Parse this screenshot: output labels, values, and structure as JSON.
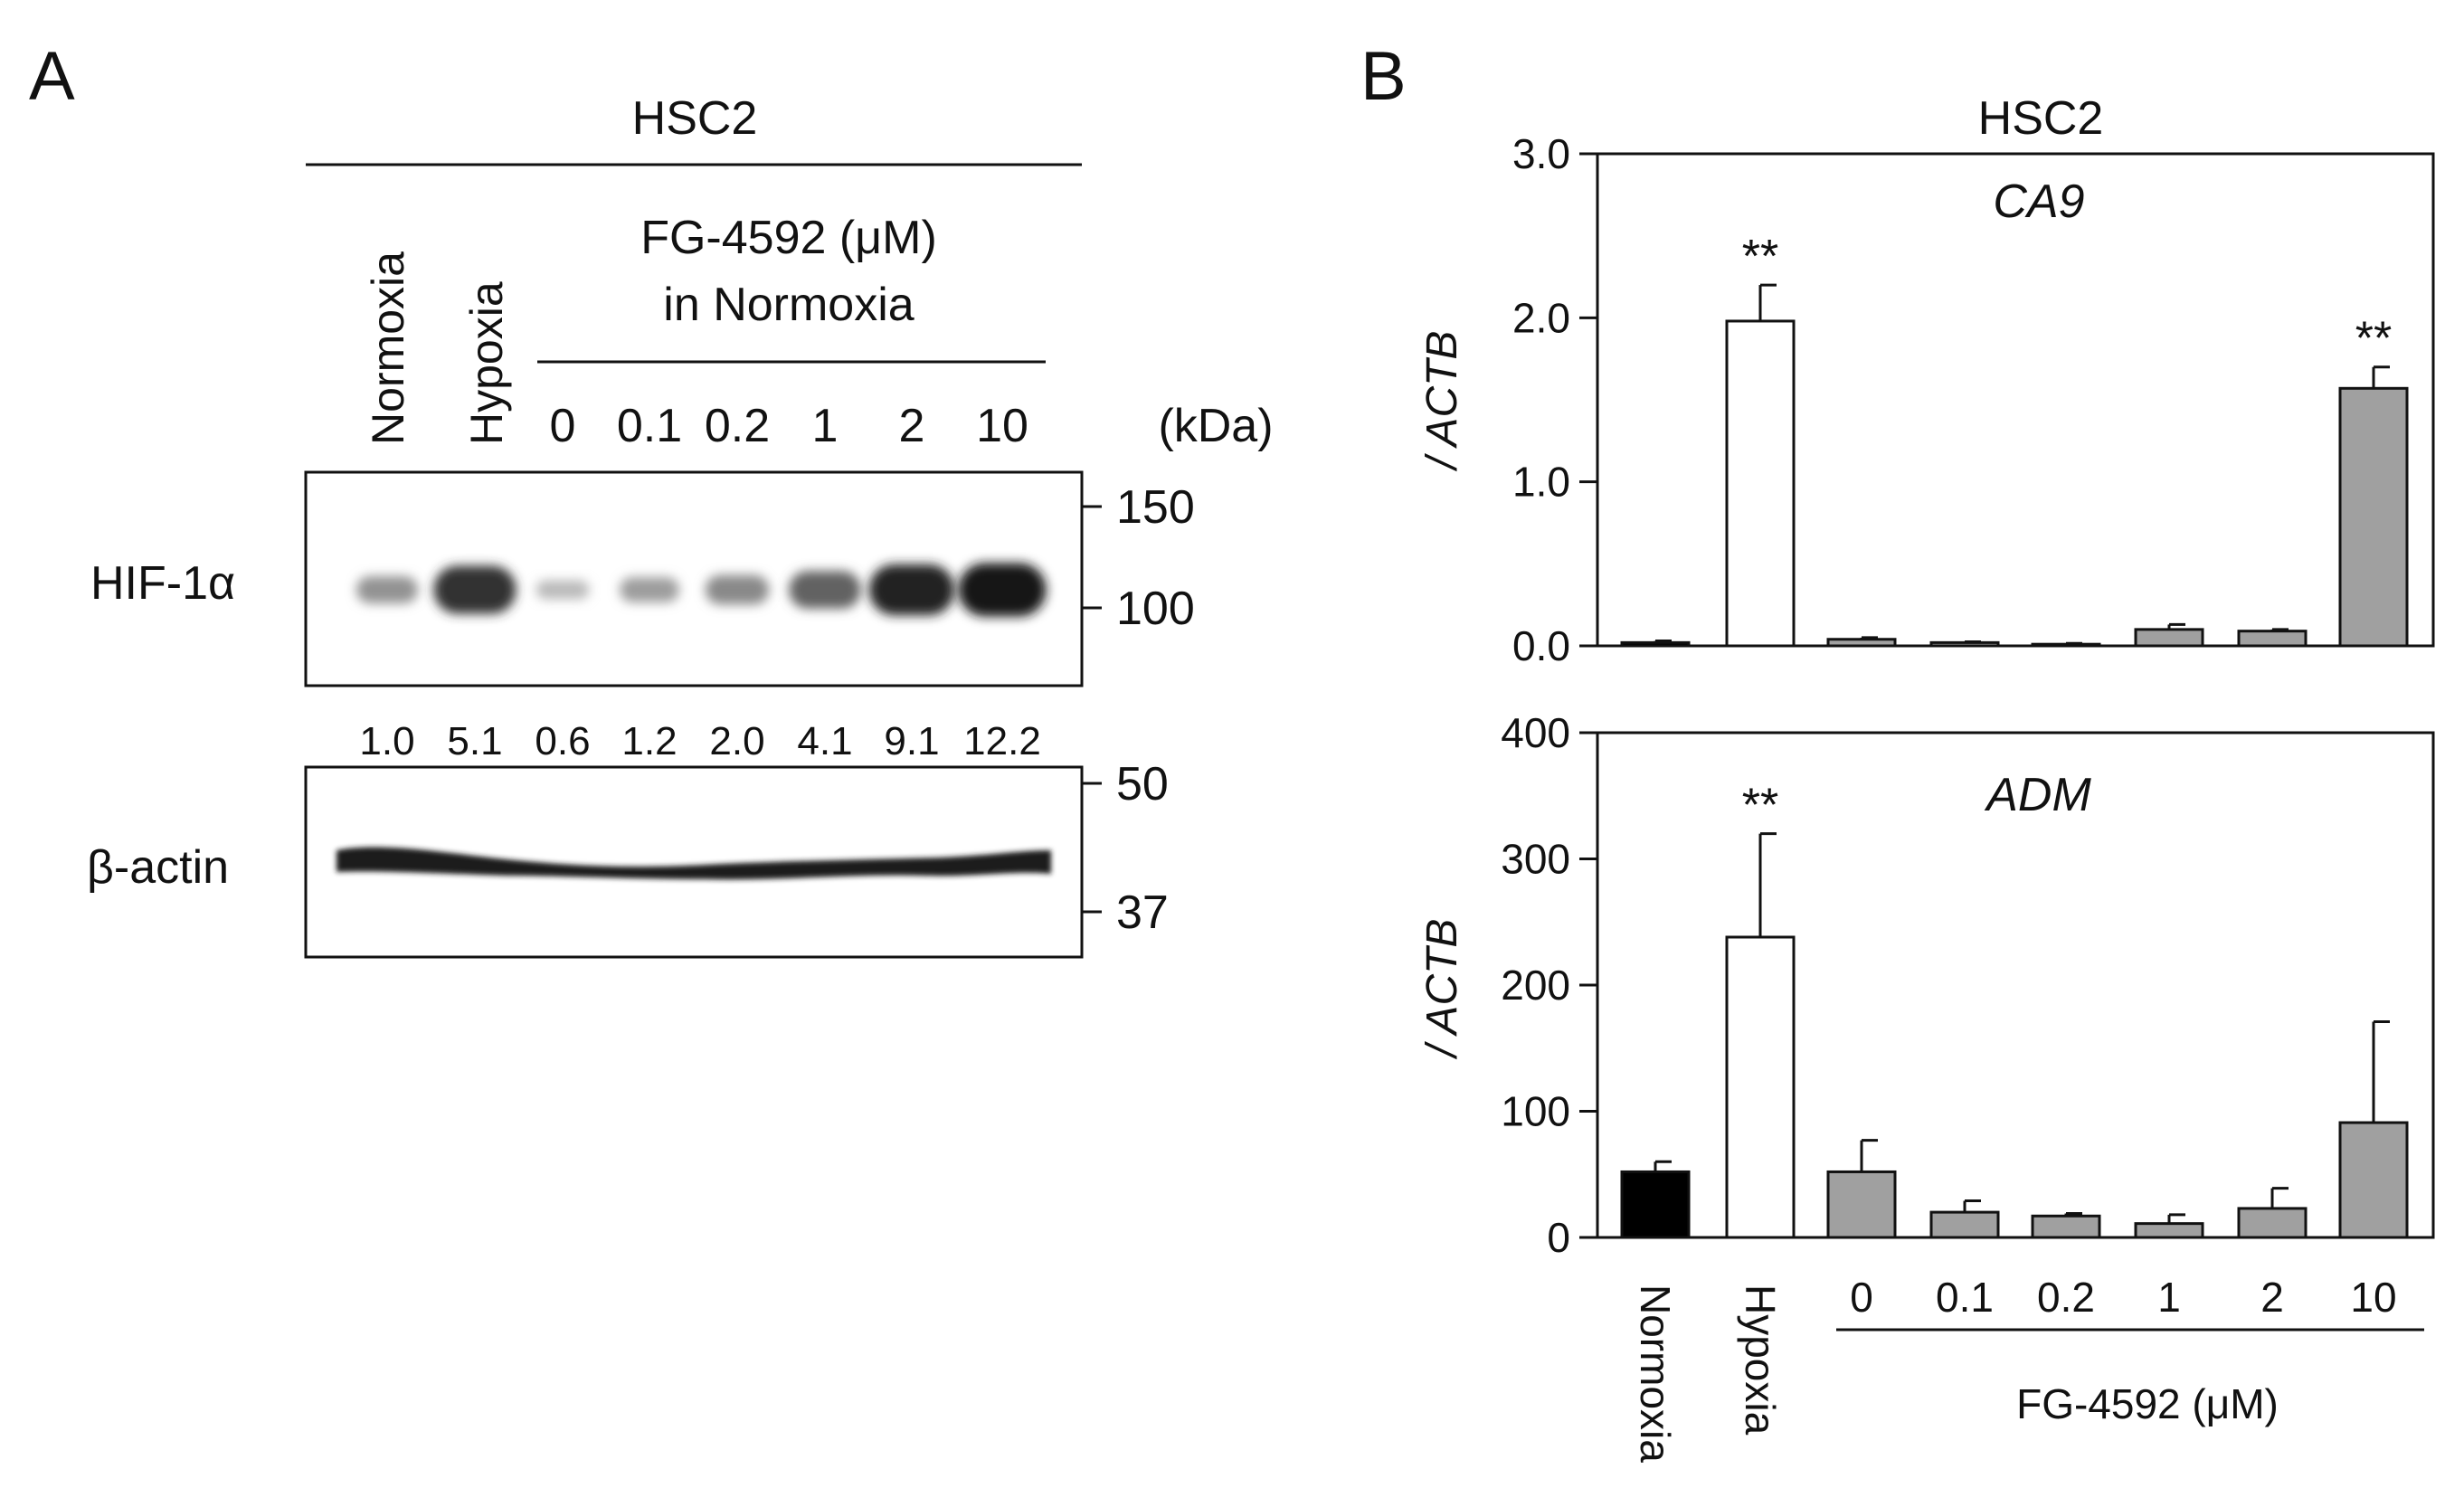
{
  "panel_a": {
    "label": "A",
    "cell_line": "HSC2",
    "lane_labels": {
      "normoxia": "Normoxia",
      "hypoxia": "Hypoxia",
      "treatment_line1": "FG-4592 (μM)",
      "treatment_line2": "in Normoxia",
      "doses": [
        "0",
        "0.1",
        "0.2",
        "1",
        "2",
        "10"
      ],
      "kda_unit": "(kDa)"
    },
    "hif_blot": {
      "protein": "HIF-1α",
      "markers": [
        "150",
        "100"
      ],
      "band_intensity": [
        0.35,
        0.85,
        0.15,
        0.3,
        0.4,
        0.6,
        0.92,
        0.98
      ]
    },
    "quantification": [
      "1.0",
      "5.1",
      "0.6",
      "1.2",
      "2.0",
      "4.1",
      "9.1",
      "12.2"
    ],
    "actin_blot": {
      "protein": "β-actin",
      "markers": [
        "50",
        "37"
      ]
    }
  },
  "panel_b": {
    "label": "B",
    "cell_line": "HSC2",
    "x_group_label": "FG-4592 (μM)"
  },
  "chart_data": [
    {
      "type": "bar",
      "title": "CA9",
      "ylabel": "/ ACTB",
      "ylim": [
        0,
        3.0
      ],
      "yticks": [
        "0.0",
        "1.0",
        "2.0",
        "3.0"
      ],
      "categories": [
        "Normoxia",
        "Hypoxia",
        "0",
        "0.1",
        "0.2",
        "1",
        "2",
        "10"
      ],
      "values": [
        0.02,
        1.98,
        0.04,
        0.02,
        0.01,
        0.1,
        0.09,
        1.57
      ],
      "errors": [
        0.01,
        0.22,
        0.01,
        0.005,
        0.005,
        0.03,
        0.01,
        0.13
      ],
      "significance": [
        "",
        "**",
        "",
        "",
        "",
        "",
        "",
        "**"
      ],
      "bar_colors": [
        "#000000",
        "#ffffff",
        "#a0a0a0",
        "#a0a0a0",
        "#a0a0a0",
        "#a0a0a0",
        "#a0a0a0",
        "#a0a0a0"
      ]
    },
    {
      "type": "bar",
      "title": "ADM",
      "ylabel": "/ ACTB",
      "ylim": [
        0,
        400
      ],
      "yticks": [
        "0",
        "100",
        "200",
        "300",
        "400"
      ],
      "categories": [
        "Normoxia",
        "Hypoxia",
        "0",
        "0.1",
        "0.2",
        "1",
        "2",
        "10"
      ],
      "values": [
        52,
        238,
        52,
        20,
        17,
        11,
        23,
        91
      ],
      "errors": [
        8,
        82,
        25,
        9,
        2,
        7,
        16,
        80
      ],
      "significance": [
        "",
        "**",
        "",
        "",
        "",
        "",
        "",
        ""
      ],
      "bar_colors": [
        "#000000",
        "#ffffff",
        "#a0a0a0",
        "#a0a0a0",
        "#a0a0a0",
        "#a0a0a0",
        "#a0a0a0",
        "#a0a0a0"
      ]
    }
  ]
}
